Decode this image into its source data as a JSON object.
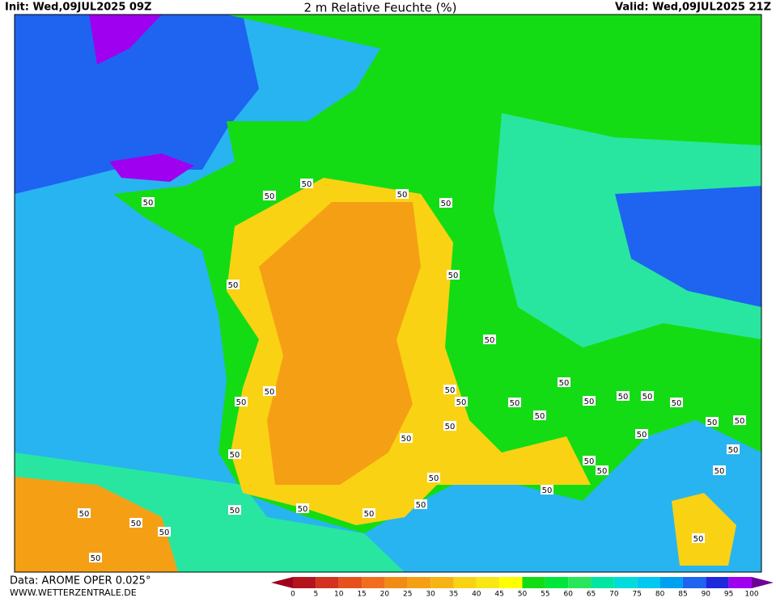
{
  "header": {
    "init": "Init: Wed,09JUL2025 09Z",
    "title": "2 m Relative Feuchte (%)",
    "valid": "Valid: Wed,09JUL2025 21Z"
  },
  "footer": {
    "source": "Data: AROME OPER 0.025°",
    "site": "WWW.WETTERZENTRALE.DE"
  },
  "contour_labels": [
    "50",
    "50",
    "50",
    "50",
    "50",
    "50",
    "50",
    "50",
    "50",
    "50",
    "50",
    "50",
    "50",
    "50",
    "50",
    "50",
    "50",
    "50",
    "50",
    "50",
    "50",
    "50",
    "50",
    "50",
    "50",
    "50",
    "50",
    "50",
    "50",
    "50",
    "50",
    "50",
    "50",
    "50",
    "50",
    "50",
    "50",
    "50",
    "50",
    "50"
  ],
  "colorbar": {
    "ticks": [
      0,
      5,
      10,
      15,
      20,
      25,
      30,
      35,
      40,
      45,
      50,
      55,
      60,
      65,
      70,
      75,
      80,
      85,
      90,
      95,
      100
    ],
    "colors": [
      "#a0001e",
      "#b4141e",
      "#d2321e",
      "#e6501e",
      "#f06e1e",
      "#f08c14",
      "#f5a014",
      "#f5b414",
      "#fad214",
      "#fae614",
      "#ffff00",
      "#14dc14",
      "#00e63c",
      "#28e65a",
      "#00e6a0",
      "#00dcdc",
      "#00c8f0",
      "#00a0f0",
      "#1e64f0",
      "#1e28dc",
      "#a000f0",
      "#6e0096"
    ]
  }
}
